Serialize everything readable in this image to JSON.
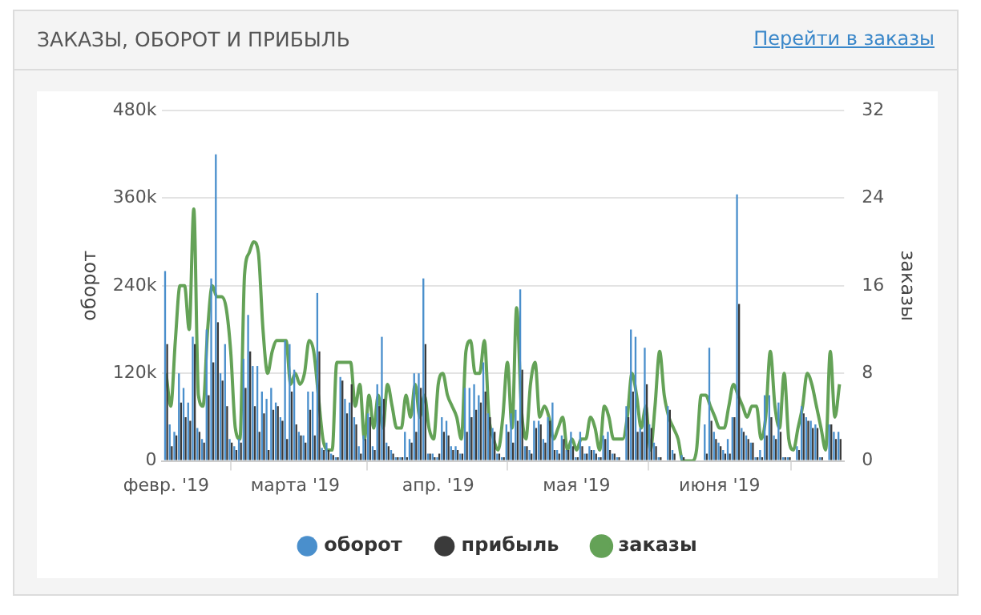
{
  "chart_data": {
    "type": "bar",
    "title": "ЗАКАЗЫ, ОБОРОТ И ПРИБЫЛЬ",
    "annotations": [
      "Перейти в заказы"
    ],
    "ylabel": "оборот",
    "y2label": "заказы",
    "x": [
      "2019-02-01",
      "2019-02-02",
      "2019-02-03",
      "2019-02-04",
      "2019-02-05",
      "2019-02-06",
      "2019-02-07",
      "2019-02-08",
      "2019-02-09",
      "2019-02-10",
      "2019-02-11",
      "2019-02-12",
      "2019-02-13",
      "2019-02-14",
      "2019-02-15",
      "2019-02-16",
      "2019-02-17",
      "2019-02-18",
      "2019-02-19",
      "2019-02-20",
      "2019-02-21",
      "2019-02-22",
      "2019-02-23",
      "2019-02-24",
      "2019-02-25",
      "2019-02-26",
      "2019-02-27",
      "2019-02-28",
      "2019-03-01",
      "2019-03-02",
      "2019-03-03",
      "2019-03-04",
      "2019-03-05",
      "2019-03-06",
      "2019-03-07",
      "2019-03-08",
      "2019-03-09",
      "2019-03-10",
      "2019-03-11",
      "2019-03-12",
      "2019-03-13",
      "2019-03-14",
      "2019-03-15",
      "2019-03-16",
      "2019-03-17",
      "2019-03-18",
      "2019-03-19",
      "2019-03-20",
      "2019-03-21",
      "2019-03-22",
      "2019-03-23",
      "2019-03-24",
      "2019-03-25",
      "2019-03-26",
      "2019-03-27",
      "2019-03-28",
      "2019-03-29",
      "2019-03-30",
      "2019-03-31",
      "2019-04-01",
      "2019-04-02",
      "2019-04-03",
      "2019-04-04",
      "2019-04-05",
      "2019-04-06",
      "2019-04-07",
      "2019-04-08",
      "2019-04-09",
      "2019-04-10",
      "2019-04-11",
      "2019-04-12",
      "2019-04-13",
      "2019-04-14",
      "2019-04-15",
      "2019-04-16",
      "2019-04-17",
      "2019-04-18",
      "2019-04-19",
      "2019-04-20",
      "2019-04-21",
      "2019-04-22",
      "2019-04-23",
      "2019-04-24",
      "2019-04-25",
      "2019-04-26",
      "2019-04-27",
      "2019-04-28",
      "2019-04-29",
      "2019-04-30",
      "2019-05-01",
      "2019-05-02",
      "2019-05-03",
      "2019-05-04",
      "2019-05-05",
      "2019-05-06",
      "2019-05-07",
      "2019-05-08",
      "2019-05-09",
      "2019-05-10",
      "2019-05-11",
      "2019-05-12",
      "2019-05-13",
      "2019-05-14",
      "2019-05-15",
      "2019-05-16",
      "2019-05-17",
      "2019-05-18",
      "2019-05-19",
      "2019-05-20",
      "2019-05-21",
      "2019-05-22",
      "2019-05-23",
      "2019-05-24",
      "2019-05-25",
      "2019-05-26",
      "2019-05-27",
      "2019-05-28",
      "2019-05-29",
      "2019-05-30",
      "2019-05-31",
      "2019-06-01",
      "2019-06-02",
      "2019-06-03",
      "2019-06-04",
      "2019-06-05",
      "2019-06-06",
      "2019-06-07",
      "2019-06-08",
      "2019-06-09",
      "2019-06-10",
      "2019-06-11",
      "2019-06-12",
      "2019-06-13",
      "2019-06-14",
      "2019-06-15",
      "2019-06-16",
      "2019-06-17",
      "2019-06-18",
      "2019-06-19",
      "2019-06-20",
      "2019-06-21",
      "2019-06-22",
      "2019-06-23",
      "2019-06-24",
      "2019-06-25",
      "2019-06-26",
      "2019-06-27"
    ],
    "xlim": [
      "2019-01-31",
      "2019-06-28"
    ],
    "xticks": [
      {
        "value": "2019-02-01",
        "label": "февр. '19"
      },
      {
        "value": "2019-03-01",
        "label": "марта '19"
      },
      {
        "value": "2019-04-01",
        "label": "апр. '19"
      },
      {
        "value": "2019-05-01",
        "label": "мая '19"
      },
      {
        "value": "2019-06-01",
        "label": "июня '19"
      }
    ],
    "ylim": [
      0,
      480000
    ],
    "yticks": [
      0,
      {
        "value": 120000,
        "label": "120k"
      },
      {
        "value": 240000,
        "label": "240k"
      },
      {
        "value": 360000,
        "label": "360k"
      },
      {
        "value": 480000,
        "label": "480k"
      }
    ],
    "y2lim": [
      0,
      32
    ],
    "y2ticks": [
      0,
      8,
      16,
      24,
      32
    ],
    "grid": "y",
    "legend": "bottom",
    "marker": "none",
    "line_style": "solid",
    "series": [
      {
        "name": "оборот",
        "color": "#4a8fcc",
        "values": [
          260000,
          50000,
          40000,
          120000,
          100000,
          80000,
          170000,
          45000,
          30000,
          180000,
          250000,
          420000,
          120000,
          160000,
          30000,
          20000,
          30000,
          140000,
          200000,
          130000,
          130000,
          95000,
          85000,
          100000,
          80000,
          60000,
          165000,
          160000,
          125000,
          40000,
          35000,
          95000,
          95000,
          230000,
          18000,
          25000,
          10000,
          5000,
          115000,
          85000,
          80000,
          60000,
          20000,
          35000,
          65000,
          20000,
          105000,
          170000,
          25000,
          15000,
          5000,
          5000,
          40000,
          30000,
          120000,
          120000,
          250000,
          10000,
          10000,
          5000,
          60000,
          55000,
          20000,
          20000,
          10000,
          100000,
          100000,
          105000,
          90000,
          135000,
          65000,
          45000,
          10000,
          5000,
          50000,
          65000,
          70000,
          235000,
          20000,
          15000,
          55000,
          55000,
          30000,
          60000,
          80000,
          15000,
          35000,
          15000,
          40000,
          5000,
          40000,
          10000,
          20000,
          15000,
          5000,
          35000,
          40000,
          10000,
          5000,
          0,
          75000,
          180000,
          170000,
          45000,
          155000,
          50000,
          25000,
          5000,
          0,
          75000,
          15000,
          0,
          8000,
          0,
          0,
          0,
          0,
          50000,
          155000,
          40000,
          25000,
          15000,
          30000,
          60000,
          365000,
          45000,
          35000,
          25000,
          5000,
          15000,
          90000,
          90000,
          35000,
          80000,
          5000,
          5000,
          0,
          20000,
          75000,
          60000,
          55000,
          50000,
          5000,
          0,
          50000,
          40000,
          40000
        ]
      },
      {
        "name": "прибыль",
        "color": "#3a3a3a",
        "values": [
          160000,
          20000,
          35000,
          80000,
          60000,
          55000,
          160000,
          40000,
          25000,
          90000,
          135000,
          190000,
          110000,
          75000,
          25000,
          15000,
          25000,
          100000,
          150000,
          75000,
          40000,
          65000,
          15000,
          70000,
          75000,
          55000,
          30000,
          95000,
          50000,
          35000,
          25000,
          70000,
          35000,
          150000,
          15000,
          15000,
          8000,
          5000,
          110000,
          65000,
          105000,
          50000,
          10000,
          30000,
          60000,
          15000,
          75000,
          85000,
          20000,
          10000,
          5000,
          5000,
          5000,
          25000,
          40000,
          100000,
          160000,
          10000,
          5000,
          10000,
          40000,
          35000,
          15000,
          15000,
          10000,
          40000,
          60000,
          70000,
          80000,
          95000,
          60000,
          40000,
          10000,
          5000,
          40000,
          25000,
          55000,
          125000,
          20000,
          10000,
          45000,
          50000,
          25000,
          55000,
          15000,
          10000,
          30000,
          15000,
          20000,
          5000,
          20000,
          10000,
          15000,
          10000,
          5000,
          30000,
          15000,
          10000,
          5000,
          0,
          60000,
          95000,
          40000,
          40000,
          105000,
          45000,
          20000,
          5000,
          0,
          70000,
          10000,
          0,
          5000,
          0,
          0,
          0,
          0,
          10000,
          55000,
          30000,
          20000,
          10000,
          10000,
          60000,
          215000,
          40000,
          30000,
          25000,
          5000,
          5000,
          35000,
          60000,
          30000,
          40000,
          5000,
          5000,
          0,
          15000,
          65000,
          55000,
          45000,
          45000,
          5000,
          0,
          50000,
          30000,
          30000
        ]
      },
      {
        "name": "заказы",
        "type": "line",
        "axis": "y2",
        "color": "#64a257",
        "values": [
          8,
          5,
          11,
          16,
          16,
          12,
          23,
          6,
          5,
          12,
          16,
          15,
          15,
          14,
          10,
          3,
          2,
          17,
          19,
          20,
          19,
          12,
          8,
          10,
          11,
          11,
          11,
          7,
          8,
          7,
          8,
          11,
          10,
          6,
          2,
          1,
          1,
          9,
          9,
          9,
          9,
          5,
          7,
          2,
          6,
          3,
          6,
          3,
          7,
          5,
          3,
          3,
          6,
          4,
          7,
          4,
          6,
          3,
          2,
          7,
          8,
          6,
          5,
          4,
          2,
          10,
          11,
          8,
          8,
          11,
          4,
          2,
          1,
          4,
          9,
          3,
          14,
          5,
          2,
          7,
          9,
          4,
          5,
          4,
          2,
          3,
          4,
          1,
          2,
          1,
          2,
          2,
          4,
          3,
          1,
          5,
          4,
          2,
          2,
          2,
          4,
          8,
          6,
          3,
          5,
          1,
          5,
          10,
          6,
          4,
          3,
          2,
          0,
          0,
          0,
          1,
          6,
          6,
          5,
          4,
          3,
          3,
          5,
          7,
          6,
          5,
          4,
          5,
          5,
          2,
          4,
          10,
          5,
          3,
          8,
          2,
          1,
          3,
          5,
          8,
          7,
          5,
          3,
          1,
          10,
          4,
          7
        ]
      }
    ]
  }
}
